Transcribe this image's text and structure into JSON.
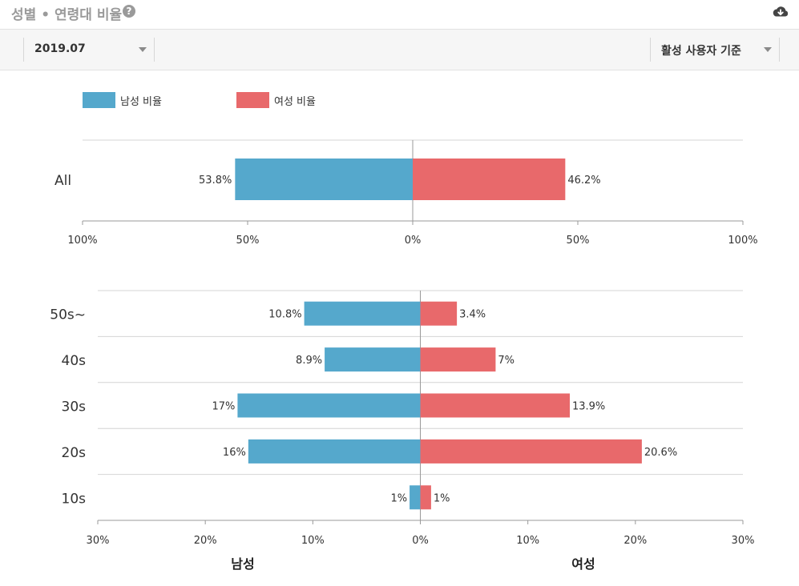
{
  "header": {
    "title": "성별 • 연령대 비율",
    "help_icon": "question-circle-icon",
    "download_icon": "cloud-download-icon"
  },
  "toolbar": {
    "date_select": {
      "value": "2019.07"
    },
    "basis_select": {
      "value": "활성 사용자 기준"
    }
  },
  "colors": {
    "male": "#55a8cc",
    "female": "#e8696b",
    "grid": "#d4d4d4",
    "axis": "#999999"
  },
  "chart_data": [
    {
      "type": "bar",
      "orientation": "horizontal-diverging",
      "legend": [
        "남성 비율",
        "여성 비율"
      ],
      "legend_position": "top-left",
      "categories": [
        "All"
      ],
      "series": [
        {
          "name": "남성 비율",
          "values": [
            53.8
          ],
          "labels": [
            "53.8%"
          ]
        },
        {
          "name": "여성 비율",
          "values": [
            46.2
          ],
          "labels": [
            "46.2%"
          ]
        }
      ],
      "xlim": [
        -100,
        100
      ],
      "ticks": [
        -100,
        -50,
        0,
        50,
        100
      ],
      "tick_labels": [
        "100%",
        "50%",
        "0%",
        "50%",
        "100%"
      ]
    },
    {
      "type": "bar",
      "orientation": "horizontal-diverging",
      "categories": [
        "50s~",
        "40s",
        "30s",
        "20s",
        "10s"
      ],
      "series": [
        {
          "name": "남성 비율",
          "values": [
            10.8,
            8.9,
            17,
            16,
            1
          ],
          "labels": [
            "10.8%",
            "8.9%",
            "17%",
            "16%",
            "1%"
          ]
        },
        {
          "name": "여성 비율",
          "values": [
            3.4,
            7,
            13.9,
            20.6,
            1
          ],
          "labels": [
            "3.4%",
            "7%",
            "13.9%",
            "20.6%",
            "1%"
          ]
        }
      ],
      "xlim": [
        -30,
        30
      ],
      "ticks": [
        -30,
        -20,
        -10,
        0,
        10,
        20,
        30
      ],
      "tick_labels": [
        "30%",
        "20%",
        "10%",
        "0%",
        "10%",
        "20%",
        "30%"
      ],
      "xlabel_left": "남성",
      "xlabel_right": "여성"
    }
  ]
}
